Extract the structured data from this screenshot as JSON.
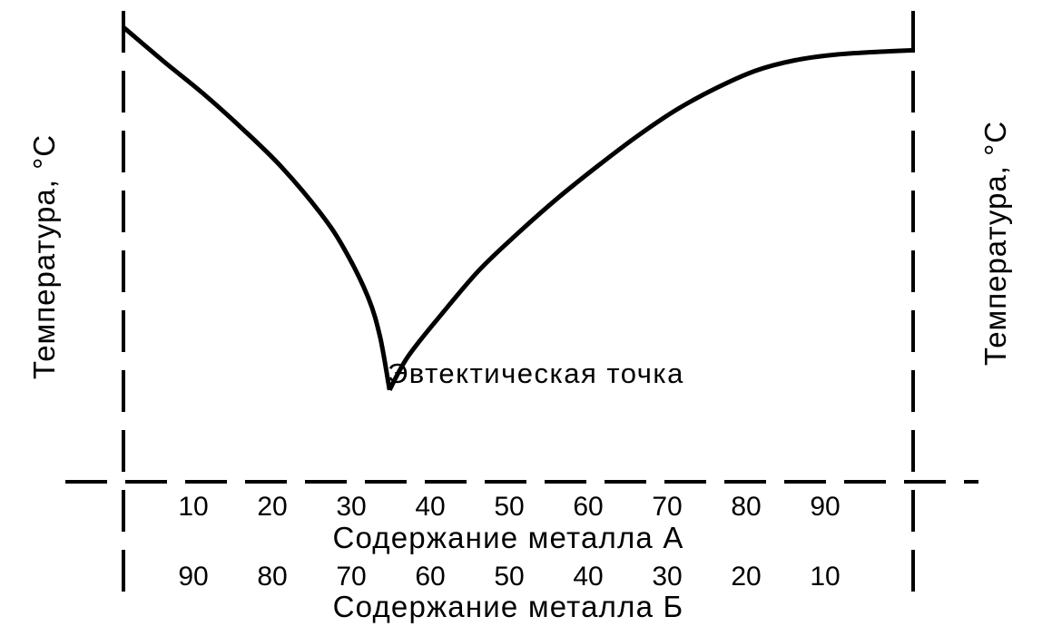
{
  "chart_data": {
    "type": "line",
    "title": "",
    "ylabel_left": "Температура, °С",
    "ylabel_right": "Температура, °С",
    "xlabel_a": "Содержание металла А",
    "xlabel_b": "Содержание металла Б",
    "x_ticks_a": [
      "10",
      "20",
      "30",
      "40",
      "50",
      "60",
      "70",
      "80",
      "90"
    ],
    "x_ticks_b": [
      "90",
      "80",
      "70",
      "60",
      "50",
      "40",
      "30",
      "20",
      "10"
    ],
    "xlim": [
      0,
      100
    ],
    "grid": false,
    "annotation": "Эвтектическая точка",
    "eutectic_x": 33.7,
    "series": [
      {
        "name": "",
        "x": [
          0,
          5,
          10,
          15,
          20,
          25,
          28,
          31,
          32.5,
          33.7,
          36,
          40,
          45,
          50,
          55,
          60,
          65,
          70,
          75,
          80,
          85,
          90,
          95,
          100
        ],
        "y": [
          0.99,
          0.917,
          0.847,
          0.77,
          0.686,
          0.584,
          0.506,
          0.401,
          0.315,
          0.2,
          0.272,
          0.359,
          0.46,
          0.542,
          0.618,
          0.687,
          0.752,
          0.81,
          0.857,
          0.895,
          0.918,
          0.93,
          0.936,
          0.94
        ]
      }
    ]
  }
}
